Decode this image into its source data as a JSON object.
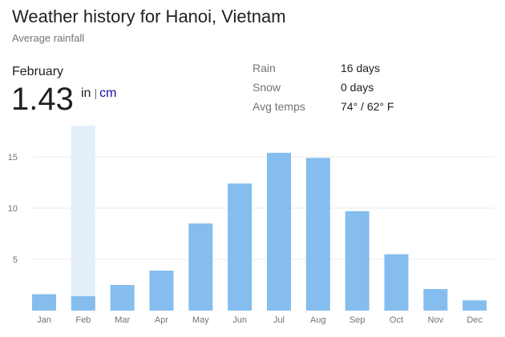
{
  "header": {
    "title": "Weather history for Hanoi, Vietnam",
    "subtitle": "Average rainfall"
  },
  "selected": {
    "month": "February",
    "value": "1.43",
    "unit_in": "in",
    "unit_sep": "|",
    "unit_cm": "cm"
  },
  "stats": [
    {
      "label": "Rain",
      "value": "16 days"
    },
    {
      "label": "Snow",
      "value": "0 days"
    },
    {
      "label": "Avg temps",
      "value": "74° / 62° F"
    }
  ],
  "colors": {
    "bar": "#85bdee",
    "highlight": "#e3effb",
    "grid": "#ebebeb",
    "link": "#1a0dab"
  },
  "chart_data": {
    "type": "bar",
    "title": "",
    "xlabel": "",
    "ylabel": "",
    "categories": [
      "Jan",
      "Feb",
      "Mar",
      "Apr",
      "May",
      "Jun",
      "Jul",
      "Aug",
      "Sep",
      "Oct",
      "Nov",
      "Dec"
    ],
    "values": [
      1.6,
      1.4,
      2.5,
      3.9,
      8.5,
      12.4,
      15.4,
      14.9,
      9.7,
      5.5,
      2.1,
      1.0
    ],
    "yticks": [
      5,
      10,
      15
    ],
    "ylim": [
      0,
      18
    ],
    "highlighted_category": "Feb",
    "grid": true
  }
}
